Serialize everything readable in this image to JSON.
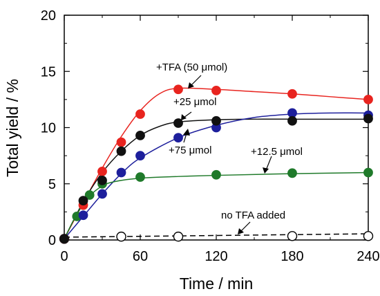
{
  "chart_data": {
    "type": "scatter",
    "title": "",
    "xlabel": "Time / min",
    "ylabel": "Total yield / %",
    "xlim": [
      0,
      240
    ],
    "ylim": [
      0,
      20
    ],
    "xticks": [
      "0",
      "60",
      "120",
      "180",
      "240"
    ],
    "yticks": [
      "0",
      "5",
      "10",
      "15",
      "20"
    ],
    "grid": false,
    "legend": "none",
    "series": [
      {
        "name": "+TFA (50 μmol)",
        "color": "#e8241f",
        "filled": true,
        "x": [
          0,
          15,
          30,
          45,
          60,
          90,
          120,
          180,
          240
        ],
        "y": [
          0.1,
          3.1,
          6.1,
          8.7,
          11.2,
          13.4,
          13.3,
          13.0,
          12.5
        ],
        "fit": [
          [
            0,
            0.1
          ],
          [
            15,
            3.3
          ],
          [
            30,
            6.4
          ],
          [
            45,
            9.2
          ],
          [
            60,
            11.5
          ],
          [
            75,
            13.0
          ],
          [
            90,
            13.5
          ],
          [
            120,
            13.4
          ],
          [
            150,
            13.2
          ],
          [
            180,
            13.0
          ],
          [
            210,
            12.75
          ],
          [
            240,
            12.5
          ]
        ]
      },
      {
        "name": "+25 μmol",
        "color": "#111111",
        "filled": true,
        "x": [
          0,
          15,
          30,
          45,
          60,
          90,
          120,
          180,
          240
        ],
        "y": [
          0.1,
          3.5,
          5.3,
          7.9,
          9.3,
          10.4,
          10.6,
          10.6,
          10.8
        ],
        "fit": [
          [
            0,
            0.1
          ],
          [
            15,
            3.4
          ],
          [
            30,
            6.0
          ],
          [
            45,
            7.9
          ],
          [
            60,
            9.3
          ],
          [
            75,
            10.1
          ],
          [
            90,
            10.5
          ],
          [
            120,
            10.7
          ],
          [
            150,
            10.75
          ],
          [
            180,
            10.75
          ],
          [
            210,
            10.75
          ],
          [
            240,
            10.75
          ]
        ]
      },
      {
        "name": "+75 μmol",
        "color": "#1d1f9c",
        "filled": true,
        "x": [
          0,
          15,
          30,
          45,
          60,
          90,
          120,
          180,
          240
        ],
        "y": [
          0.1,
          2.2,
          4.1,
          6.0,
          7.5,
          9.1,
          10.0,
          11.3,
          11.1
        ],
        "fit": [
          [
            0,
            0.1
          ],
          [
            15,
            2.1
          ],
          [
            30,
            4.1
          ],
          [
            45,
            5.9
          ],
          [
            60,
            7.3
          ],
          [
            90,
            9.1
          ],
          [
            120,
            10.2
          ],
          [
            150,
            10.9
          ],
          [
            180,
            11.2
          ],
          [
            210,
            11.3
          ],
          [
            240,
            11.3
          ]
        ]
      },
      {
        "name": "+12.5 μmol",
        "color": "#1f7a2a",
        "filled": true,
        "x": [
          0,
          10,
          20,
          30,
          60,
          120,
          180,
          240
        ],
        "y": [
          0.1,
          2.1,
          4.0,
          5.0,
          5.6,
          5.8,
          5.95,
          6.0
        ],
        "fit": [
          [
            0,
            0.1
          ],
          [
            10,
            2.3
          ],
          [
            20,
            3.9
          ],
          [
            30,
            4.8
          ],
          [
            40,
            5.2
          ],
          [
            60,
            5.5
          ],
          [
            90,
            5.65
          ],
          [
            120,
            5.75
          ],
          [
            180,
            5.9
          ],
          [
            240,
            6.0
          ]
        ]
      },
      {
        "name": "no TFA added",
        "color": "#000000",
        "filled": false,
        "dashed": true,
        "x": [
          0,
          45,
          90,
          180,
          240
        ],
        "y": [
          0.1,
          0.3,
          0.3,
          0.35,
          0.35
        ],
        "fit": [
          [
            0,
            0.25
          ],
          [
            240,
            0.55
          ]
        ]
      }
    ]
  },
  "annotations": {
    "tfa50": "+TFA (50 μmol)",
    "tfa25": "+25 μmol",
    "tfa75": "+75 μmol",
    "tfa125": "+12.5 μmol",
    "none": "no TFA added"
  }
}
